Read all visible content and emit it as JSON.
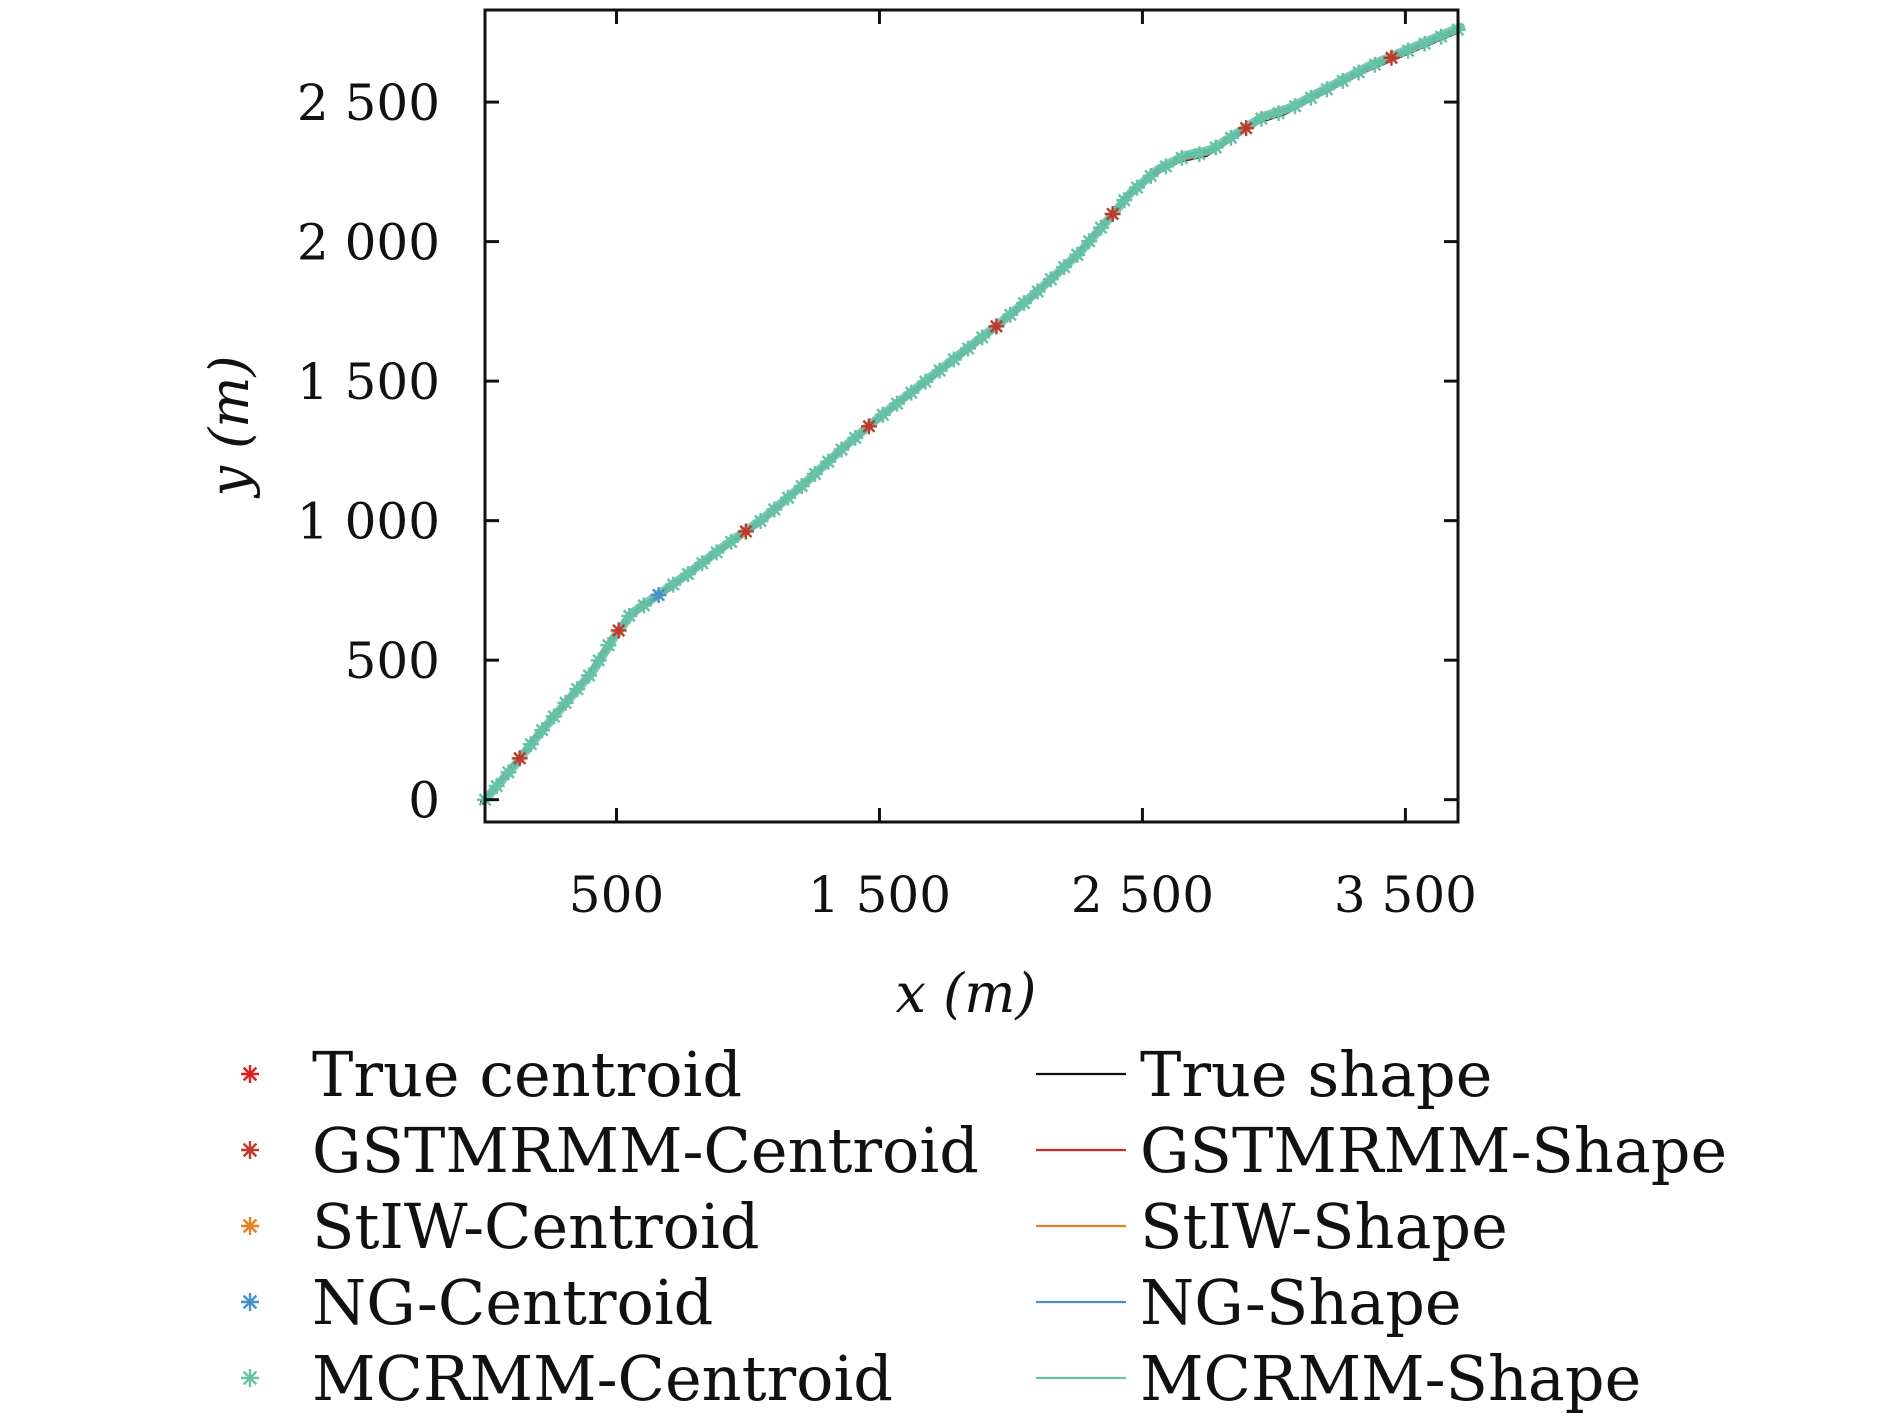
{
  "chart_data": {
    "type": "scatter",
    "title": "",
    "xlabel": "x (m)",
    "ylabel": "y (m)",
    "xlim": [
      0,
      3700
    ],
    "ylim": [
      -80,
      2830
    ],
    "xticks": [
      500,
      1500,
      2500,
      3500
    ],
    "xtick_labels": [
      "500",
      "1 500",
      "2 500",
      "3 500"
    ],
    "yticks": [
      0,
      500,
      1000,
      1500,
      2000,
      2500
    ],
    "ytick_labels": [
      "0",
      "500",
      "1 000",
      "1 500",
      "2 000",
      "2 500"
    ],
    "grid": false,
    "legend_position": "bottom",
    "trajectory": {
      "x": [
        0,
        100,
        200,
        300,
        400,
        480,
        550,
        640,
        760,
        900,
        1050,
        1200,
        1350,
        1500,
        1650,
        1800,
        1950,
        2100,
        2250,
        2370,
        2450,
        2550,
        2650,
        2750,
        2850,
        2950,
        3050,
        3150,
        3250,
        3350,
        3450,
        3550,
        3700
      ],
      "y": [
        0,
        110,
        230,
        340,
        450,
        570,
        660,
        720,
        800,
        900,
        1000,
        1120,
        1250,
        1370,
        1480,
        1590,
        1700,
        1820,
        1950,
        2080,
        2170,
        2250,
        2300,
        2320,
        2380,
        2440,
        2470,
        2520,
        2570,
        2620,
        2660,
        2700,
        2760
      ]
    },
    "series": [
      {
        "name": "True centroid",
        "kind": "marker",
        "color": "#e41a1c"
      },
      {
        "name": "GSTMRMM-Centroid",
        "kind": "marker",
        "color": "#c0392b"
      },
      {
        "name": "StIW-Centroid",
        "kind": "marker",
        "color": "#e67e22"
      },
      {
        "name": "NG-Centroid",
        "kind": "marker",
        "color": "#4a90c8"
      },
      {
        "name": "MCRMM-Centroid",
        "kind": "marker",
        "color": "#66c2a5"
      },
      {
        "name": "True shape",
        "kind": "line",
        "color": "#111111"
      },
      {
        "name": "GSTMRMM-Shape",
        "kind": "line",
        "color": "#d62728"
      },
      {
        "name": "StIW-Shape",
        "kind": "line",
        "color": "#d9822b"
      },
      {
        "name": "NG-Shape",
        "kind": "line",
        "color": "#4a90c8"
      },
      {
        "name": "MCRMM-Shape",
        "kind": "line",
        "color": "#66c2a5"
      }
    ]
  }
}
